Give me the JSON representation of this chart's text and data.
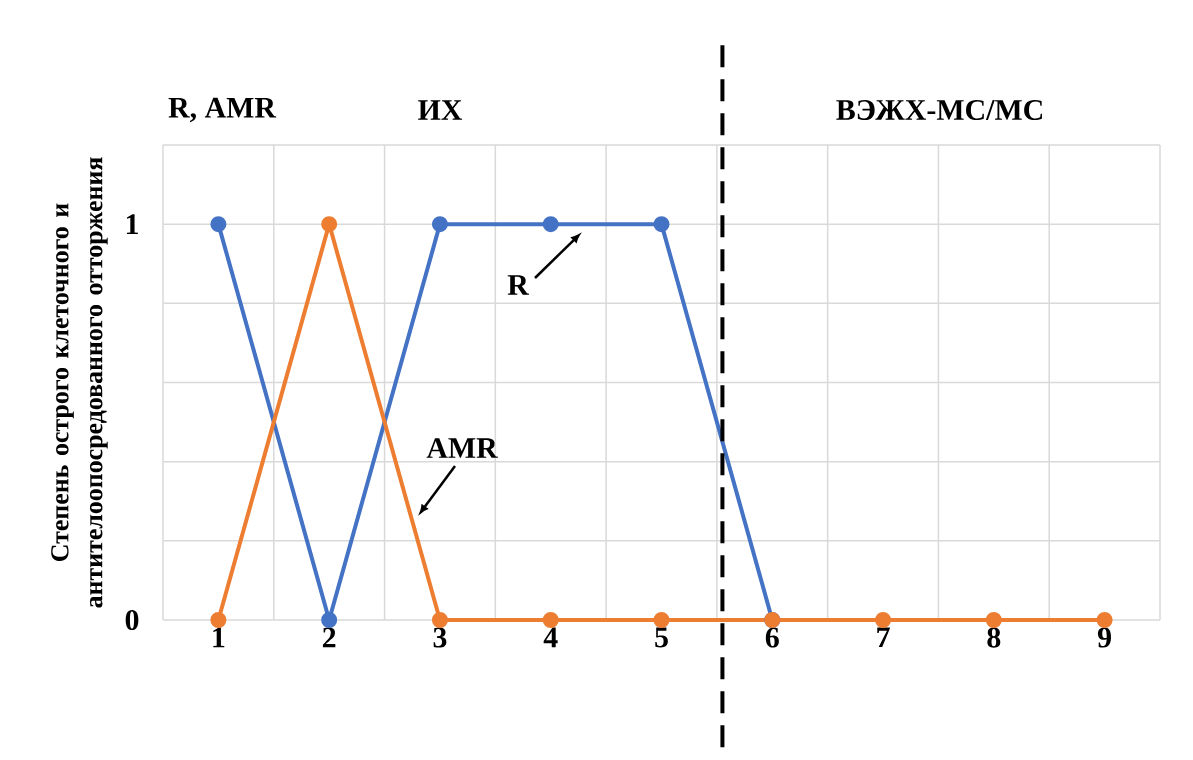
{
  "chart_data": {
    "type": "line",
    "ylabel": "Степень острого клеточного и антителоопосредованного отторжения",
    "x": [
      1,
      2,
      3,
      4,
      5,
      6,
      7,
      8,
      9
    ],
    "series": [
      {
        "color": "#4472c4",
        "values": [
          1,
          0,
          1,
          1,
          1,
          0,
          null,
          null,
          null
        ]
      },
      {
        "color": "#ed7d31",
        "values": [
          0,
          1,
          0,
          0,
          0,
          0,
          0,
          0,
          0
        ]
      }
    ],
    "xlim": [
      0.5,
      9.5
    ],
    "ylim": [
      0,
      1.2
    ],
    "xticks": [
      {
        "value": 0.5,
        "label": null
      },
      1,
      {
        "value": 1.5,
        "label": null
      },
      2,
      {
        "value": 2.5,
        "label": null
      },
      3,
      {
        "value": 3.5,
        "label": null
      },
      4,
      {
        "value": 4.5,
        "label": null
      },
      5,
      {
        "value": 5.5,
        "label": null
      },
      6,
      {
        "value": 6.5,
        "label": null
      },
      7,
      {
        "value": 7.5,
        "label": null
      },
      8,
      {
        "value": 8.5,
        "label": null
      },
      9,
      {
        "value": 9.5,
        "label": null
      }
    ],
    "yticks": [
      0,
      {
        "value": 0.2,
        "label": null
      },
      {
        "value": 0.4,
        "label": null
      },
      {
        "value": 0.6,
        "label": null
      },
      {
        "value": 0.8,
        "label": null
      },
      1,
      {
        "value": 1.2,
        "label": null
      }
    ],
    "grid": true,
    "marker": "circle",
    "line_style": "solid",
    "ref_lines": [
      {
        "axis": "x",
        "value": 5.55,
        "color": "#000000",
        "line_style": "dashed"
      }
    ],
    "annotations": [
      "R, AMR",
      "ИХ",
      "ВЭЖХ-МС/МС",
      "R",
      "AMR"
    ]
  }
}
